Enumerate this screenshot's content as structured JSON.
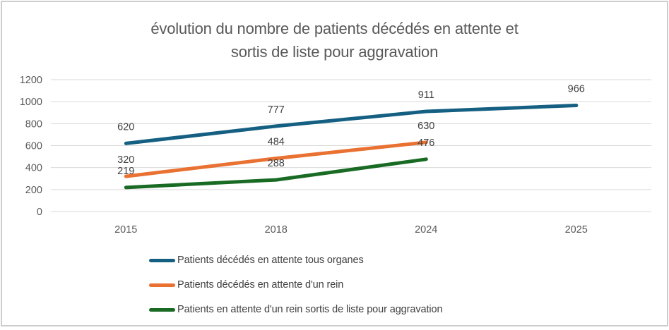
{
  "header": {
    "title_lines": [
      "évolution du nombre de patients décédés en attente et",
      "sortis de liste pour aggravation"
    ]
  },
  "chart_data": {
    "type": "line",
    "title": "évolution du nombre de patients décédés en attente et sortis de liste pour aggravation",
    "categories": [
      "2015",
      "2018",
      "2024",
      "2025"
    ],
    "series": [
      {
        "name": "Patients décédés en attente tous organes",
        "color": "#156082",
        "values": [
          620,
          777,
          911,
          966
        ]
      },
      {
        "name": "Patients décédés en attente d'un rein",
        "color": "#E97132",
        "values": [
          320,
          484,
          630,
          null
        ]
      },
      {
        "name": "Patients en attente d'un rein sortis de liste pour aggravation",
        "color": "#196B24",
        "values": [
          219,
          288,
          476,
          null
        ]
      }
    ],
    "xlabel": "",
    "ylabel": "",
    "ylim": [
      0,
      1200
    ],
    "yticks": [
      0,
      200,
      400,
      600,
      800,
      1000,
      1200
    ],
    "grid": true,
    "data_labels": "above",
    "legend_position": "bottom-left"
  },
  "style": {
    "grid_color": "#D9D9D9",
    "axis_text_color": "#595959",
    "data_label_color": "#404040",
    "title_color": "#595959",
    "legend_text_color": "#404040",
    "frame_border_color": "#CDCDCD"
  }
}
